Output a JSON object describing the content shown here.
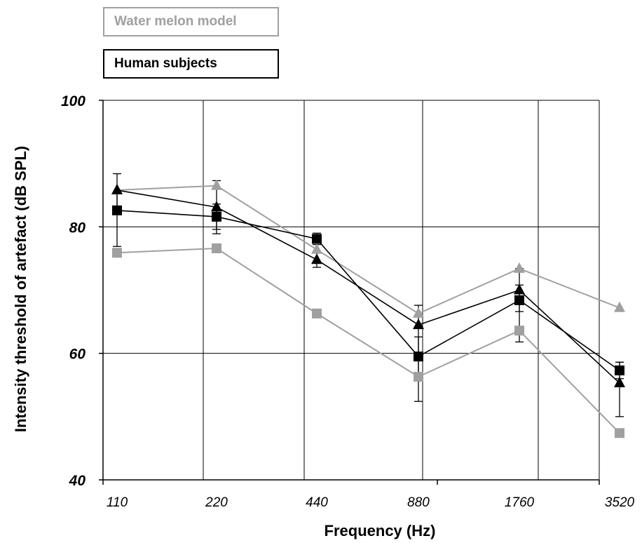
{
  "chart_data": {
    "type": "line",
    "title": "",
    "xlabel": "Frequency (Hz)",
    "ylabel": "Intensity threshold of artefact (dB SPL)",
    "categories": [
      "110",
      "220",
      "440",
      "880",
      "1760",
      "3520"
    ],
    "ylim": [
      40,
      100
    ],
    "yticks": [
      40,
      60,
      80,
      100
    ],
    "grid": true,
    "legend": [
      {
        "label": "Water melon model",
        "color": "#a0a0a0"
      },
      {
        "label": "Human subjects",
        "color": "#000000"
      }
    ],
    "series": [
      {
        "group": "Water melon model",
        "marker": "triangle",
        "color": "#a0a0a0",
        "values": [
          85.8,
          86.5,
          76.4,
          66.3,
          73.4,
          67.2
        ]
      },
      {
        "group": "Water melon model",
        "marker": "square",
        "color": "#a0a0a0",
        "values": [
          75.9,
          76.6,
          66.3,
          56.3,
          63.6,
          47.4
        ]
      },
      {
        "group": "Human subjects",
        "marker": "triangle",
        "color": "#000000",
        "values": [
          85.8,
          83.1,
          74.8,
          64.5,
          70.0,
          55.3
        ],
        "error_upper": [
          88.4,
          87.3,
          76.0,
          67.6,
          73.4,
          58.6
        ],
        "error_lower": [
          83.2,
          78.9,
          73.6,
          52.4,
          66.6,
          50.0
        ]
      },
      {
        "group": "Human subjects",
        "marker": "square",
        "color": "#000000",
        "values": [
          82.6,
          81.6,
          78.1,
          59.5,
          68.4,
          57.3
        ],
        "error_upper": [
          85.4,
          83.6,
          79.0,
          62.6,
          70.8,
          58.6
        ],
        "error_lower": [
          76.9,
          79.6,
          77.2,
          56.4,
          61.8,
          56.0
        ]
      }
    ]
  }
}
